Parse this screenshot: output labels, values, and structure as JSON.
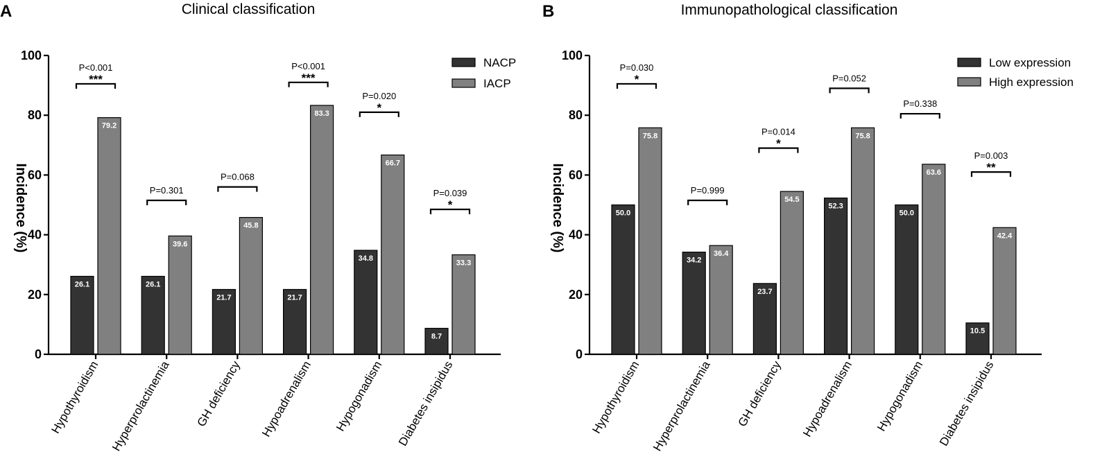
{
  "chart_data": [
    {
      "panel": "A",
      "type": "bar",
      "title": "Clinical classification",
      "ylabel": "Incidence (%)",
      "xlabel": "",
      "ylim": [
        0,
        100
      ],
      "yticks": [
        0,
        20,
        40,
        60,
        80,
        100
      ],
      "categories": [
        "Hypothyroidism",
        "Hyperprolactinemia",
        "GH deficiency",
        "Hypoadrenalism",
        "Hypogonadism",
        "Diabetes insipidus"
      ],
      "series": [
        {
          "name": "NACP",
          "color": "#333333",
          "values": [
            26.1,
            26.1,
            21.7,
            21.7,
            34.8,
            8.7
          ],
          "labels": [
            "26.1",
            "26.1",
            "21.7",
            "21.7",
            "34.8",
            "8.7"
          ]
        },
        {
          "name": "IACP",
          "color": "#808080",
          "values": [
            79.2,
            39.6,
            45.8,
            83.3,
            66.7,
            33.3
          ],
          "labels": [
            "79.2",
            "39.6",
            "45.8",
            "83.3",
            "66.7",
            "33.3"
          ]
        }
      ],
      "significance": [
        {
          "p": "P<0.001",
          "stars": "***",
          "level": 90.5
        },
        {
          "p": "P=0.301",
          "stars": "",
          "level": 51.5
        },
        {
          "p": "P=0.068",
          "stars": "",
          "level": 56.0
        },
        {
          "p": "P<0.001",
          "stars": "***",
          "level": 91.0
        },
        {
          "p": "P=0.020",
          "stars": "*",
          "level": 81.0
        },
        {
          "p": "P=0.039",
          "stars": "*",
          "level": 48.5
        }
      ],
      "legend_position": "top-right"
    },
    {
      "panel": "B",
      "type": "bar",
      "title": "Immunopathological classification",
      "ylabel": "Incidence (%)",
      "xlabel": "",
      "ylim": [
        0,
        100
      ],
      "yticks": [
        0,
        20,
        40,
        60,
        80,
        100
      ],
      "categories": [
        "Hypothyroidism",
        "Hyperprolactinemia",
        "GH deficiency",
        "Hypoadrenalism",
        "Hypogonadism",
        "Diabetes insipidus"
      ],
      "series": [
        {
          "name": "Low expression",
          "color": "#333333",
          "values": [
            50.0,
            34.2,
            23.7,
            52.3,
            50.0,
            10.5
          ],
          "labels": [
            "50.0",
            "34.2",
            "23.7",
            "52.3",
            "50.0",
            "10.5"
          ]
        },
        {
          "name": "High expression",
          "color": "#808080",
          "values": [
            75.8,
            36.4,
            54.5,
            75.8,
            63.6,
            42.4
          ],
          "labels": [
            "75.8",
            "36.4",
            "54.5",
            "75.8",
            "63.6",
            "42.4"
          ]
        }
      ],
      "significance": [
        {
          "p": "P=0.030",
          "stars": "*",
          "level": 90.5
        },
        {
          "p": "P=0.999",
          "stars": "",
          "level": 51.5
        },
        {
          "p": "P=0.014",
          "stars": "*",
          "level": 69.0
        },
        {
          "p": "P=0.052",
          "stars": "",
          "level": 89.0
        },
        {
          "p": "P=0.338",
          "stars": "",
          "level": 80.5
        },
        {
          "p": "P=0.003",
          "stars": "**",
          "level": 61.0
        }
      ],
      "legend_position": "top-right"
    }
  ]
}
